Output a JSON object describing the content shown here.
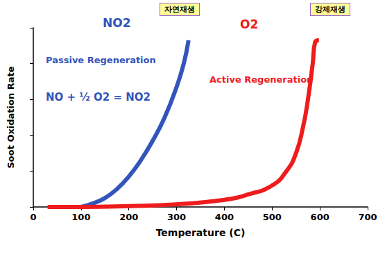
{
  "chart_data": {
    "type": "line",
    "x_label": "Temperature (C)",
    "y_label": "Soot Oxidation Rate",
    "xlim": [
      0,
      700
    ],
    "xticks": [
      0,
      100,
      200,
      300,
      400,
      500,
      600,
      700
    ],
    "ylim": [
      0,
      100
    ],
    "yticks": [
      0,
      20,
      40,
      60,
      80,
      100
    ],
    "tick_labels": "x",
    "grid": false,
    "series": [
      {
        "name": "NO2",
        "color": "#3355bb",
        "line_style": "solid",
        "x": [
          100,
          125,
          150,
          175,
          200,
          225,
          250,
          275,
          300,
          315,
          325
        ],
        "values": [
          0,
          2,
          5,
          10,
          17,
          26,
          37,
          50,
          67,
          80,
          93
        ]
      },
      {
        "name": "O2",
        "color": "#ee1c1c",
        "line_style": "solid",
        "x": [
          30,
          100,
          200,
          300,
          400,
          450,
          500,
          530,
          550,
          565,
          575,
          585,
          590,
          598
        ],
        "values": [
          0,
          0,
          0.5,
          1.5,
          4,
          7,
          12,
          20,
          30,
          45,
          60,
          80,
          92,
          93
        ]
      }
    ],
    "annotations": [
      "Passive Regeneration",
      "NO + ½ O2 = NO2",
      "Active Regeneration",
      "자연재생",
      "강제재생"
    ]
  }
}
